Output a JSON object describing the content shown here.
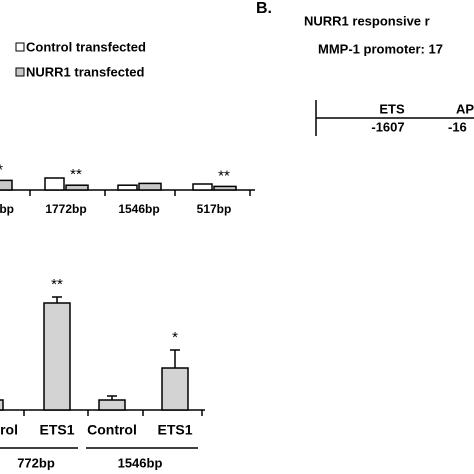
{
  "chart_data": [
    {
      "type": "bar",
      "categories": [
        "bp",
        "1772bp",
        "1546bp",
        "517bp"
      ],
      "series": [
        {
          "name": "Control transfected",
          "color": "#ffffff",
          "values": [
            null,
            2,
            0.8,
            1
          ]
        },
        {
          "name": "NURR1 transfected",
          "color": "#c8c8c8",
          "values": [
            1.6,
            0.8,
            1.1,
            0.6
          ]
        }
      ],
      "annotations": [
        "*",
        "**",
        "**"
      ]
    },
    {
      "type": "bar",
      "categories": [
        "trol",
        "ETS1",
        "Control",
        "ETS1"
      ],
      "groups": [
        "772bp",
        "1546bp"
      ],
      "color": "#d3d3d3",
      "values": [
        1,
        10.7,
        1,
        4.2
      ],
      "errors": [
        0.4,
        0.6,
        0.4,
        1.8
      ],
      "annotations": [
        "**",
        "*"
      ]
    }
  ],
  "panel_b": {
    "label": "B.",
    "title": "NURR1 responsive r",
    "promoter": "MMP-1 promoter: 17",
    "sites": [
      {
        "name": "ETS",
        "position": "-1607"
      },
      {
        "name": "AP",
        "position": "-16"
      }
    ]
  }
}
